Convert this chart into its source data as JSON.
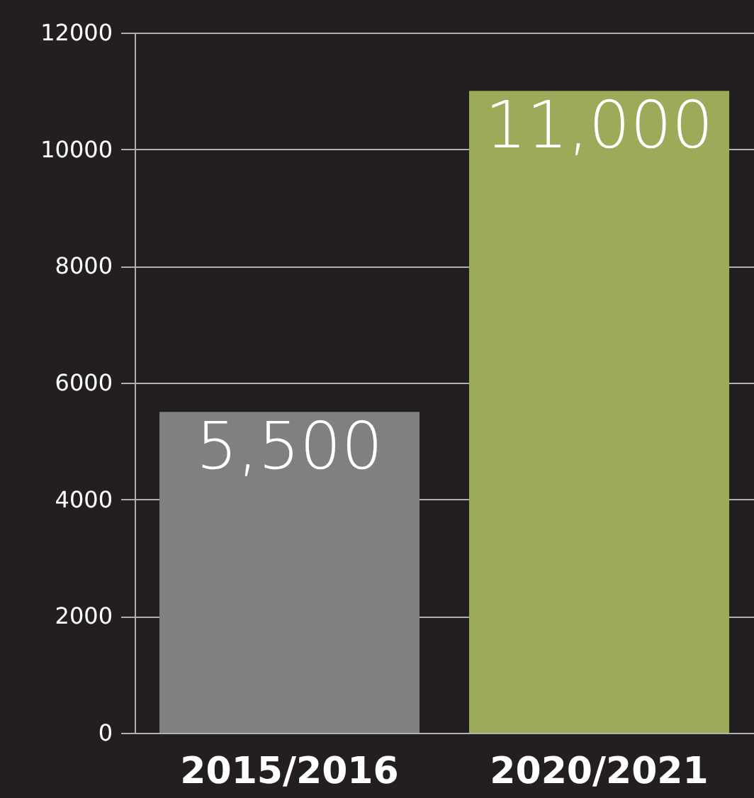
{
  "chart_data": {
    "type": "bar",
    "categories": [
      "2015/2016",
      "2020/2021"
    ],
    "values": [
      5500,
      11000
    ],
    "colors": [
      "#808080",
      "#9cab59"
    ],
    "value_labels": [
      "5,500",
      "11,000"
    ],
    "ylim": [
      0,
      12000
    ],
    "yticks": [
      0,
      2000,
      4000,
      6000,
      8000,
      10000,
      12000
    ],
    "grid": "y"
  }
}
